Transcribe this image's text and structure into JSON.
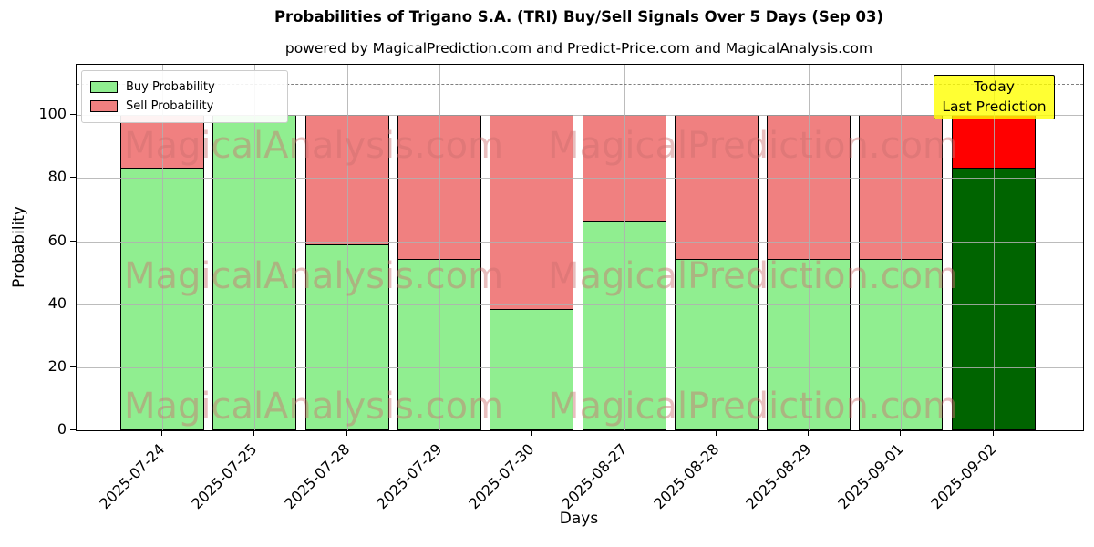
{
  "chart_data": {
    "type": "bar",
    "stacked": true,
    "title": "Probabilities of Trigano S.A. (TRI) Buy/Sell Signals Over 5 Days (Sep 03)",
    "subtitle": "powered by MagicalPrediction.com and Predict-Price.com and MagicalAnalysis.com",
    "categories": [
      "2025-07-24",
      "2025-07-25",
      "2025-07-28",
      "2025-07-29",
      "2025-07-30",
      "2025-08-27",
      "2025-08-28",
      "2025-08-29",
      "2025-09-01",
      "2025-09-02"
    ],
    "series": [
      {
        "name": "Buy Probability",
        "color": "#90ee90",
        "values": [
          83.3,
          100.0,
          59.0,
          54.5,
          38.5,
          66.7,
          54.5,
          54.5,
          54.5,
          83.3
        ]
      },
      {
        "name": "Sell Probability",
        "color": "#f08080",
        "values": [
          16.7,
          0.0,
          41.0,
          45.5,
          61.5,
          33.3,
          45.5,
          45.5,
          45.5,
          16.7
        ]
      }
    ],
    "today_bar": {
      "index": 9,
      "buy_color": "#006400",
      "sell_color": "#ff0000"
    },
    "xlabel": "Days",
    "ylabel": "Probability",
    "yticks": [
      0,
      20,
      40,
      60,
      80,
      100
    ],
    "ylim": [
      0,
      116
    ],
    "grid": true,
    "legend_position": "upper-left",
    "threshold_line": {
      "y": 110,
      "style": "dashed",
      "color": "#7f7f7f"
    }
  },
  "legend": {
    "entries": [
      "Buy Probability",
      "Sell Probability"
    ]
  },
  "annotation": {
    "lines": [
      "Today",
      "Last Prediction"
    ],
    "bg": "rgba(255,255,0,0.8)",
    "border_color": "#000000"
  },
  "watermarks": {
    "left": "MagicalAnalysis.com",
    "right": "MagicalPrediction.com",
    "color": "rgba(203,110,110,0.45)"
  }
}
